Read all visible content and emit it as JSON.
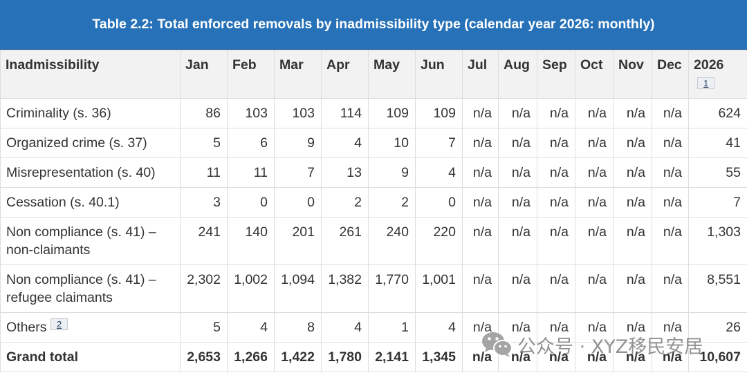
{
  "caption": "Table 2.2: Total enforced removals by inadmissibility type (calendar year 2026: monthly)",
  "colors": {
    "caption_bg": "#2671b8",
    "caption_text": "#ffffff",
    "header_bg": "#f2f2f2"
  },
  "table": {
    "columns": [
      {
        "label": "Inadmissibility"
      },
      {
        "label": "Jan"
      },
      {
        "label": "Feb"
      },
      {
        "label": "Mar"
      },
      {
        "label": "Apr"
      },
      {
        "label": "May"
      },
      {
        "label": "Jun"
      },
      {
        "label": "Jul"
      },
      {
        "label": "Aug"
      },
      {
        "label": "Sep"
      },
      {
        "label": "Oct"
      },
      {
        "label": "Nov"
      },
      {
        "label": "Dec"
      },
      {
        "label": "2026",
        "footnote": "1"
      }
    ],
    "rows": [
      {
        "label": "Criminality (s. 36)",
        "values": [
          "86",
          "103",
          "103",
          "114",
          "109",
          "109",
          "n/a",
          "n/a",
          "n/a",
          "n/a",
          "n/a",
          "n/a",
          "624"
        ]
      },
      {
        "label": "Organized crime (s. 37)",
        "values": [
          "5",
          "6",
          "9",
          "4",
          "10",
          "7",
          "n/a",
          "n/a",
          "n/a",
          "n/a",
          "n/a",
          "n/a",
          "41"
        ]
      },
      {
        "label": "Misrepresentation (s. 40)",
        "values": [
          "11",
          "11",
          "7",
          "13",
          "9",
          "4",
          "n/a",
          "n/a",
          "n/a",
          "n/a",
          "n/a",
          "n/a",
          "55"
        ]
      },
      {
        "label": "Cessation (s. 40.1)",
        "values": [
          "3",
          "0",
          "0",
          "2",
          "2",
          "0",
          "n/a",
          "n/a",
          "n/a",
          "n/a",
          "n/a",
          "n/a",
          "7"
        ]
      },
      {
        "label": "Non compliance (s. 41) – non-claimants",
        "values": [
          "241",
          "140",
          "201",
          "261",
          "240",
          "220",
          "n/a",
          "n/a",
          "n/a",
          "n/a",
          "n/a",
          "n/a",
          "1,303"
        ]
      },
      {
        "label": "Non compliance (s. 41) – refugee claimants",
        "values": [
          "2,302",
          "1,002",
          "1,094",
          "1,382",
          "1,770",
          "1,001",
          "n/a",
          "n/a",
          "n/a",
          "n/a",
          "n/a",
          "n/a",
          "8,551"
        ]
      },
      {
        "label": "Others",
        "footnote": "2",
        "values": [
          "5",
          "4",
          "8",
          "4",
          "1",
          "4",
          "n/a",
          "n/a",
          "n/a",
          "n/a",
          "n/a",
          "n/a",
          "26"
        ]
      }
    ],
    "total": {
      "label": "Grand total",
      "values": [
        "2,653",
        "1,266",
        "1,422",
        "1,780",
        "2,141",
        "1,345",
        "n/a",
        "n/a",
        "n/a",
        "n/a",
        "n/a",
        "n/a",
        "10,607"
      ]
    }
  },
  "watermark": {
    "icon": "wechat-icon",
    "text": "公众号 · XYZ移民安居"
  }
}
